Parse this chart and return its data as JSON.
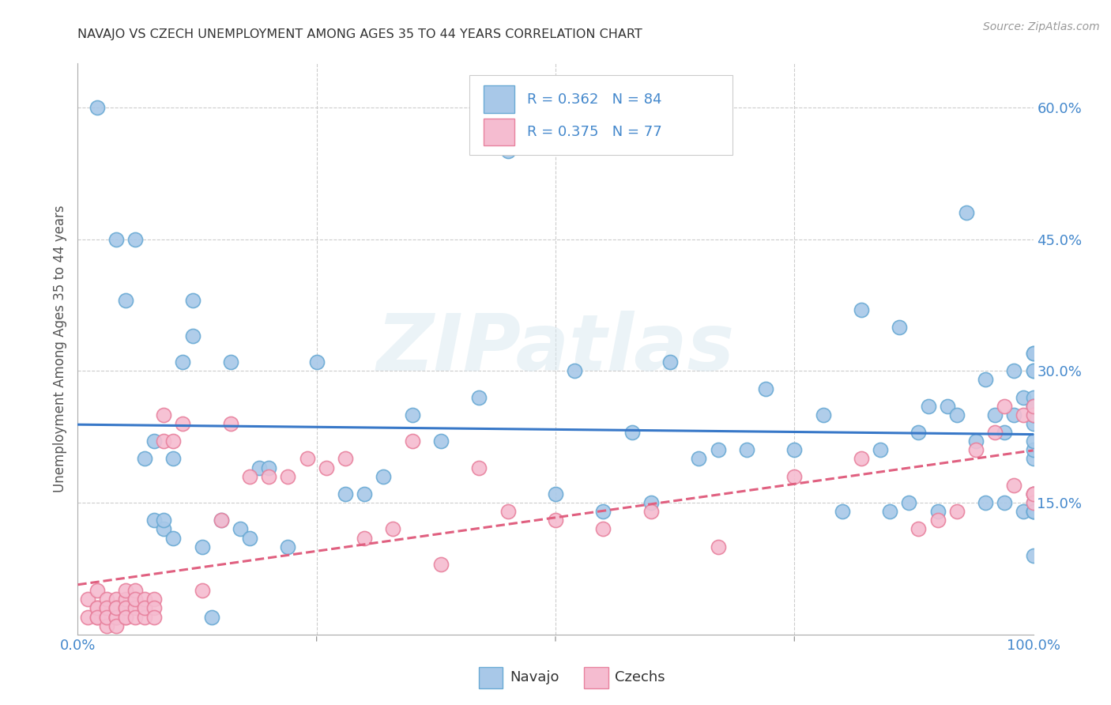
{
  "title": "NAVAJO VS CZECH UNEMPLOYMENT AMONG AGES 35 TO 44 YEARS CORRELATION CHART",
  "source": "Source: ZipAtlas.com",
  "ylabel": "Unemployment Among Ages 35 to 44 years",
  "xlim": [
    0,
    1.0
  ],
  "ylim": [
    0,
    0.65
  ],
  "xticks": [
    0.0,
    0.25,
    0.5,
    0.75,
    1.0
  ],
  "xticklabels": [
    "0.0%",
    "",
    "",
    "",
    "100.0%"
  ],
  "yticks": [
    0.0,
    0.15,
    0.3,
    0.45,
    0.6
  ],
  "yticklabels": [
    "",
    "15.0%",
    "30.0%",
    "45.0%",
    "60.0%"
  ],
  "navajo_color": "#a8c8e8",
  "navajo_edge_color": "#6aaad4",
  "czech_color": "#f5bcd0",
  "czech_edge_color": "#e8829e",
  "navajo_R": "0.362",
  "navajo_N": "84",
  "czech_R": "0.375",
  "czech_N": "77",
  "legend_navajo_label": "Navajo",
  "legend_czech_label": "Czechs",
  "watermark": "ZIPatlas",
  "navajo_trend_color": "#3878c8",
  "czech_trend_color": "#e06080",
  "background_color": "#ffffff",
  "tick_color": "#4488cc",
  "grid_color": "#cccccc",
  "navajo_scatter_x": [
    0.02,
    0.04,
    0.05,
    0.06,
    0.07,
    0.08,
    0.08,
    0.09,
    0.09,
    0.1,
    0.1,
    0.11,
    0.12,
    0.12,
    0.13,
    0.14,
    0.15,
    0.16,
    0.17,
    0.18,
    0.19,
    0.2,
    0.22,
    0.25,
    0.28,
    0.3,
    0.32,
    0.35,
    0.38,
    0.42,
    0.45,
    0.5,
    0.52,
    0.55,
    0.58,
    0.6,
    0.62,
    0.65,
    0.67,
    0.7,
    0.72,
    0.75,
    0.78,
    0.8,
    0.82,
    0.84,
    0.85,
    0.86,
    0.87,
    0.88,
    0.89,
    0.9,
    0.91,
    0.92,
    0.93,
    0.94,
    0.95,
    0.95,
    0.96,
    0.97,
    0.97,
    0.98,
    0.98,
    0.99,
    0.99,
    1.0,
    1.0,
    1.0,
    1.0,
    1.0,
    1.0,
    1.0,
    1.0,
    1.0,
    1.0,
    1.0,
    1.0,
    1.0,
    1.0,
    1.0,
    1.0,
    1.0,
    1.0,
    1.0
  ],
  "navajo_scatter_y": [
    0.6,
    0.45,
    0.38,
    0.45,
    0.2,
    0.22,
    0.13,
    0.12,
    0.13,
    0.11,
    0.2,
    0.31,
    0.34,
    0.38,
    0.1,
    0.02,
    0.13,
    0.31,
    0.12,
    0.11,
    0.19,
    0.19,
    0.1,
    0.31,
    0.16,
    0.16,
    0.18,
    0.25,
    0.22,
    0.27,
    0.55,
    0.16,
    0.3,
    0.14,
    0.23,
    0.15,
    0.31,
    0.2,
    0.21,
    0.21,
    0.28,
    0.21,
    0.25,
    0.14,
    0.37,
    0.21,
    0.14,
    0.35,
    0.15,
    0.23,
    0.26,
    0.14,
    0.26,
    0.25,
    0.48,
    0.22,
    0.29,
    0.15,
    0.25,
    0.15,
    0.23,
    0.3,
    0.25,
    0.14,
    0.27,
    0.24,
    0.26,
    0.2,
    0.25,
    0.14,
    0.3,
    0.21,
    0.27,
    0.25,
    0.26,
    0.22,
    0.32,
    0.16,
    0.14,
    0.15,
    0.32,
    0.09,
    0.14,
    0.3
  ],
  "czech_scatter_x": [
    0.01,
    0.01,
    0.02,
    0.02,
    0.02,
    0.02,
    0.02,
    0.03,
    0.03,
    0.03,
    0.03,
    0.03,
    0.03,
    0.04,
    0.04,
    0.04,
    0.04,
    0.04,
    0.04,
    0.04,
    0.05,
    0.05,
    0.05,
    0.05,
    0.05,
    0.05,
    0.06,
    0.06,
    0.06,
    0.06,
    0.06,
    0.07,
    0.07,
    0.07,
    0.07,
    0.08,
    0.08,
    0.08,
    0.09,
    0.09,
    0.1,
    0.11,
    0.13,
    0.15,
    0.16,
    0.18,
    0.2,
    0.22,
    0.24,
    0.26,
    0.28,
    0.3,
    0.33,
    0.35,
    0.38,
    0.42,
    0.45,
    0.5,
    0.55,
    0.6,
    0.67,
    0.75,
    0.82,
    0.88,
    0.9,
    0.92,
    0.94,
    0.96,
    0.97,
    0.98,
    0.99,
    1.0,
    1.0,
    1.0,
    1.0,
    1.0,
    1.0
  ],
  "czech_scatter_y": [
    0.02,
    0.04,
    0.03,
    0.02,
    0.05,
    0.03,
    0.02,
    0.02,
    0.03,
    0.01,
    0.04,
    0.03,
    0.02,
    0.02,
    0.04,
    0.02,
    0.03,
    0.02,
    0.01,
    0.03,
    0.03,
    0.02,
    0.04,
    0.03,
    0.02,
    0.05,
    0.04,
    0.05,
    0.03,
    0.02,
    0.04,
    0.03,
    0.04,
    0.02,
    0.03,
    0.04,
    0.03,
    0.02,
    0.25,
    0.22,
    0.22,
    0.24,
    0.05,
    0.13,
    0.24,
    0.18,
    0.18,
    0.18,
    0.2,
    0.19,
    0.2,
    0.11,
    0.12,
    0.22,
    0.08,
    0.19,
    0.14,
    0.13,
    0.12,
    0.14,
    0.1,
    0.18,
    0.2,
    0.12,
    0.13,
    0.14,
    0.21,
    0.23,
    0.26,
    0.17,
    0.25,
    0.16,
    0.25,
    0.16,
    0.26,
    0.15,
    0.16
  ]
}
